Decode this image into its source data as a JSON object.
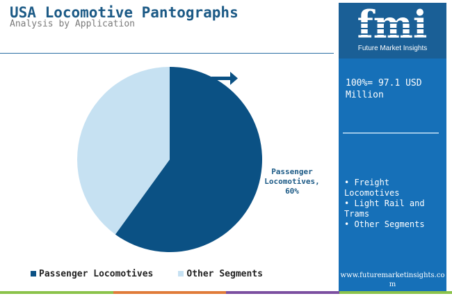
{
  "title": "USA Locomotive Pantographs",
  "subtitle": "Analysis by Application",
  "colors": {
    "passenger": "#0b5184",
    "other": "#c6e1f2",
    "panel": "#1670b8",
    "logo_bg": "#1a5f96",
    "title": "#1c5a86",
    "bottom_bar": [
      "#8bc34a",
      "#e07b39",
      "#7b4fa0",
      "#8bc34a"
    ]
  },
  "chart_data": {
    "type": "pie",
    "slices": [
      {
        "name": "Passenger Locomotives",
        "value": 60,
        "color": "#0b5184"
      },
      {
        "name": "Other Segments",
        "value": 40,
        "color": "#c6e1f2"
      }
    ],
    "slice_label": "Passenger Locomotives, 60%",
    "legend": [
      "Passenger Locomotives",
      "Other Segments"
    ],
    "legend_position": "bottom"
  },
  "slice_label_lines": [
    "Passenger",
    "Locomotives,",
    "60%"
  ],
  "legend_items": [
    {
      "label": "Passenger Locomotives",
      "color": "#0b5184"
    },
    {
      "label": "Other Segments",
      "color": "#c6e1f2"
    }
  ],
  "sidebar": {
    "logo_letters": "fmi",
    "logo_text": "Future Market Insights",
    "total_label": "100%= 97.1 USD Million",
    "segments": [
      "Freight Locomotives",
      "Light Rail and Trams",
      "Other Segments"
    ],
    "website": "www.futuremarketinsights.com"
  }
}
